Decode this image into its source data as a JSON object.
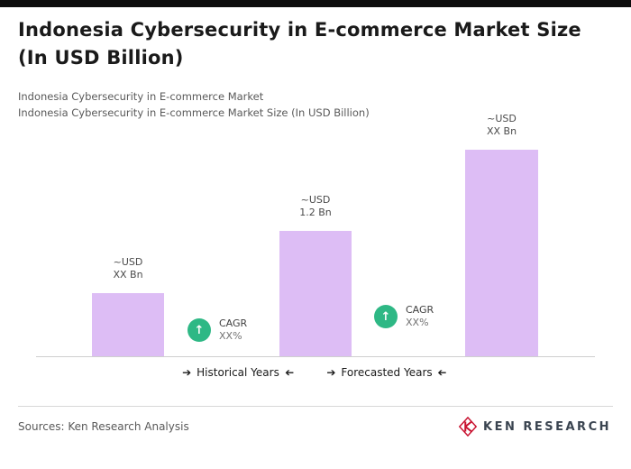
{
  "header": {
    "title_line1": "Indonesia Cybersecurity in E-commerce Market Size",
    "title_line2": "(In USD Billion)",
    "subtitle1": "Indonesia Cybersecurity in E-commerce Market",
    "subtitle2": "Indonesia Cybersecurity in E-commerce Market Size (In USD Billion)"
  },
  "chart_data": {
    "type": "bar",
    "title": "Indonesia Cybersecurity in E-commerce Market Size (In USD Billion)",
    "categories": [
      "",
      "",
      ""
    ],
    "values": [
      0.6,
      1.2,
      2.0
    ],
    "ylim": [
      0,
      2.33
    ],
    "bar_color": "#ddbdf5",
    "badge_color": "#2eb885",
    "grid": false,
    "bar_labels": [
      {
        "line1": "~USD",
        "line2": "XX Bn"
      },
      {
        "line1": "~USD",
        "line2": "1.2 Bn"
      },
      {
        "line1": "~USD",
        "line2": "XX Bn"
      }
    ],
    "annotations": [
      {
        "label": "CAGR",
        "value": "XX%"
      },
      {
        "label": "CAGR",
        "value": "XX%"
      }
    ],
    "axis_sections": [
      {
        "label": "Historical Years"
      },
      {
        "label": "Forecasted Years"
      }
    ]
  },
  "icons": {
    "up_arrow": "↑",
    "right_arrow": "➔"
  },
  "footer": {
    "sources": "Sources: Ken Research Analysis",
    "logo_text": "KEN RESEARCH"
  }
}
